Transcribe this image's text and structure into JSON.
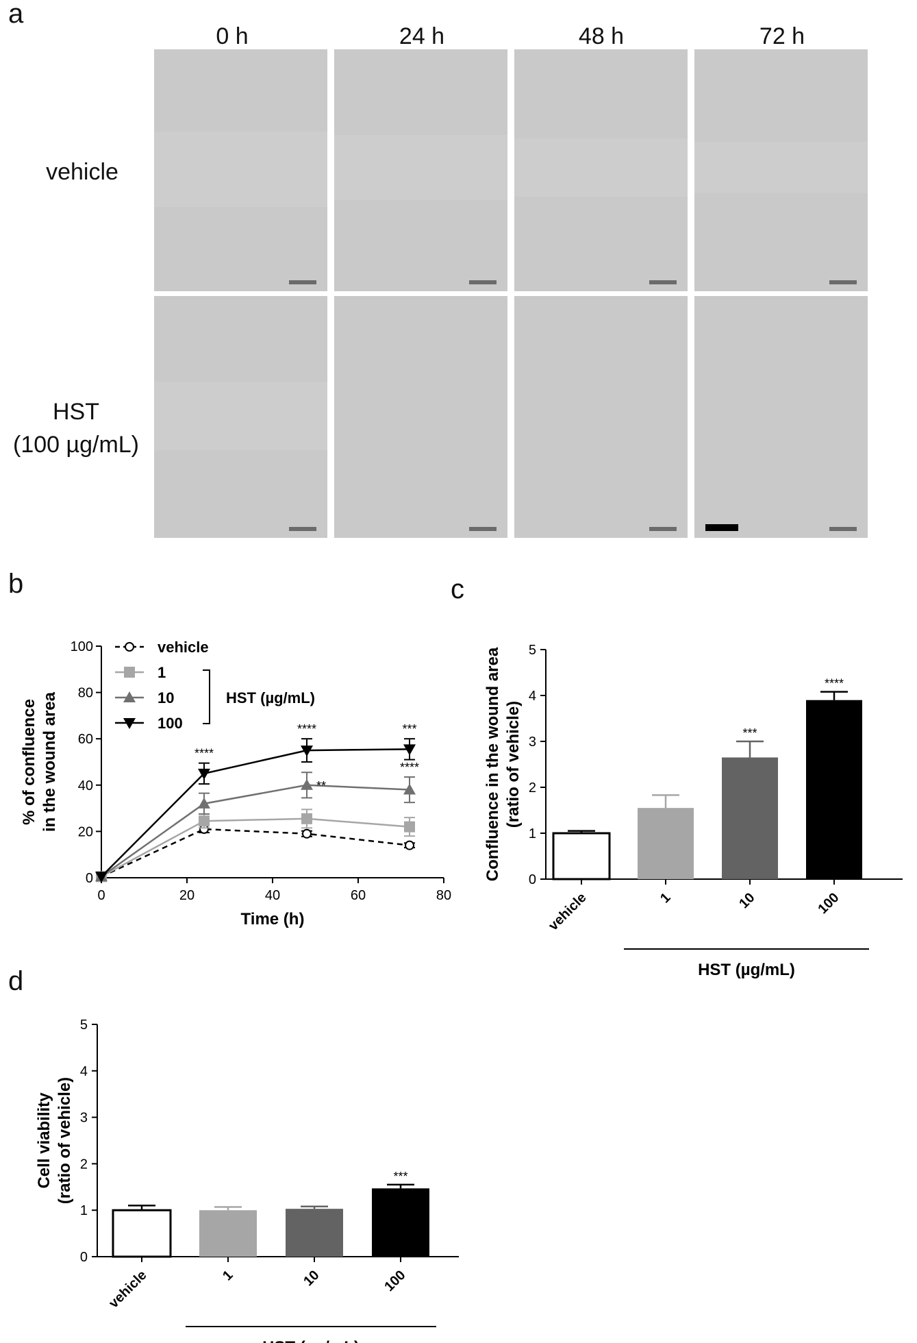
{
  "panel_a": {
    "letter": "a",
    "time_labels": [
      "0 h",
      "24 h",
      "48 h",
      "72 h"
    ],
    "row_labels": {
      "vehicle": "vehicle",
      "hst_line1": "HST",
      "hst_line2": "(100 µg/mL)"
    }
  },
  "panel_b": {
    "letter": "b"
  },
  "panel_c": {
    "letter": "c"
  },
  "panel_d": {
    "letter": "d"
  },
  "colors": {
    "vehicle": "#000000",
    "hst1": "#a6a6a6",
    "hst10": "#707070",
    "hst100": "#000000",
    "bar10": "#636363"
  },
  "chart_data": [
    {
      "panel": "b",
      "type": "line",
      "xlabel": "Time (h)",
      "ylabel_line1": "% of confluence",
      "ylabel_line2": "in the wound area",
      "xlim": [
        0,
        80
      ],
      "ylim": [
        0,
        100
      ],
      "xticks": [
        "0",
        "20",
        "40",
        "60",
        "80"
      ],
      "yticks": [
        "0",
        "20",
        "40",
        "60",
        "80",
        "100"
      ],
      "legend_group_label": "HST (µg/mL)",
      "series": [
        {
          "name": "vehicle",
          "x": [
            0,
            24,
            48,
            72
          ],
          "y": [
            0.5,
            21,
            19,
            14
          ],
          "err": [
            0,
            1.5,
            1.2,
            1.0
          ],
          "marker": "open-circle",
          "dash": true,
          "color_key": "vehicle",
          "stars": [
            "",
            "",
            "",
            ""
          ]
        },
        {
          "name": "1",
          "x": [
            0,
            24,
            48,
            72
          ],
          "y": [
            0.5,
            24.5,
            25.5,
            22
          ],
          "err": [
            0,
            3,
            4,
            4
          ],
          "marker": "square",
          "dash": false,
          "color_key": "hst1",
          "stars": [
            "",
            "",
            "",
            ""
          ]
        },
        {
          "name": "10",
          "x": [
            0,
            24,
            48,
            72
          ],
          "y": [
            0.5,
            32,
            40,
            38
          ],
          "err": [
            0,
            4.5,
            5.5,
            5.5
          ],
          "marker": "triangle-up",
          "dash": false,
          "color_key": "hst10",
          "stars": [
            "",
            "",
            "**",
            "****"
          ]
        },
        {
          "name": "100",
          "x": [
            0,
            24,
            48,
            72
          ],
          "y": [
            0.5,
            45,
            55,
            55.5
          ],
          "err": [
            0,
            4.5,
            5,
            4.5
          ],
          "marker": "triangle-down",
          "dash": false,
          "color_key": "hst100",
          "stars": [
            "",
            "****",
            "****",
            "***"
          ]
        }
      ]
    },
    {
      "panel": "c",
      "type": "bar",
      "ylabel_line1": "Confluence in the wound area",
      "ylabel_line2": "(ratio of vehicle)",
      "group_label": "HST (µg/mL)",
      "ylim": [
        0,
        5
      ],
      "yticks": [
        "0",
        "1",
        "2",
        "3",
        "4",
        "5"
      ],
      "categories": [
        "vehicle",
        "1",
        "10",
        "100"
      ],
      "values": [
        1.0,
        1.55,
        2.65,
        3.9
      ],
      "errors": [
        0.05,
        0.28,
        0.35,
        0.18
      ],
      "stars": [
        "",
        "",
        "***",
        "****"
      ],
      "color_keys": [
        "white",
        "hst1",
        "bar10",
        "hst100"
      ]
    },
    {
      "panel": "d",
      "type": "bar",
      "ylabel_line1": "Cell viability",
      "ylabel_line2": "(ratio of vehicle)",
      "group_label": "HST (µg/mL)",
      "ylim": [
        0,
        5
      ],
      "yticks": [
        "0",
        "1",
        "2",
        "3",
        "4",
        "5"
      ],
      "categories": [
        "vehicle",
        "1",
        "10",
        "100"
      ],
      "values": [
        1.0,
        1.0,
        1.03,
        1.47
      ],
      "errors": [
        0.1,
        0.07,
        0.05,
        0.08
      ],
      "stars": [
        "",
        "",
        "",
        "***"
      ],
      "color_keys": [
        "white",
        "hst1",
        "bar10",
        "hst100"
      ]
    }
  ]
}
